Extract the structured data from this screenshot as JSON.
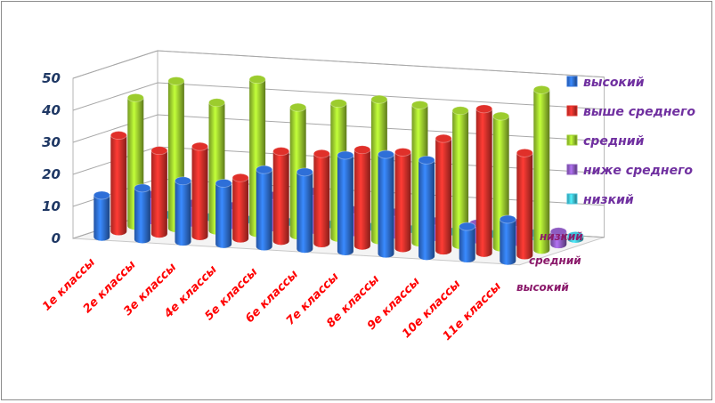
{
  "chart_data": {
    "type": "bar",
    "style": "3d-column",
    "categories": [
      "1е классы",
      "2е классы",
      "3е классы",
      "4е классы",
      "5е классы",
      "6е классы",
      "7е классы",
      "8е классы",
      "9е классы",
      "10е классы",
      "11е классы"
    ],
    "series": [
      {
        "name": "высокий",
        "color": "#2e6fd8",
        "values": [
          13,
          16,
          19,
          19,
          24,
          24,
          30,
          31,
          30,
          10,
          13
        ]
      },
      {
        "name": "выше среднего",
        "color": "#e0302a",
        "values": [
          30,
          26,
          28,
          19,
          28,
          28,
          30,
          30,
          35,
          45,
          32
        ]
      },
      {
        "name": "средний",
        "color": "#9ccc2e",
        "values": [
          40,
          46,
          40,
          48,
          40,
          42,
          44,
          43,
          42,
          41,
          50
        ]
      },
      {
        "name": "ниже среднего",
        "color": "#8e5cc2",
        "values": [
          8,
          6,
          6,
          10,
          12,
          7,
          7,
          5,
          5,
          6,
          4
        ]
      },
      {
        "name": "низкий",
        "color": "#3fc1d9",
        "values": [
          0,
          0,
          0,
          0,
          0,
          0,
          0,
          0,
          0,
          1,
          1
        ]
      }
    ],
    "depth_labels": [
      "высокий",
      "средний",
      "низкий"
    ],
    "ylim": [
      0,
      50
    ],
    "yticks": [
      0,
      10,
      20,
      30,
      40,
      50
    ],
    "grid": true,
    "legend_position": "right"
  }
}
